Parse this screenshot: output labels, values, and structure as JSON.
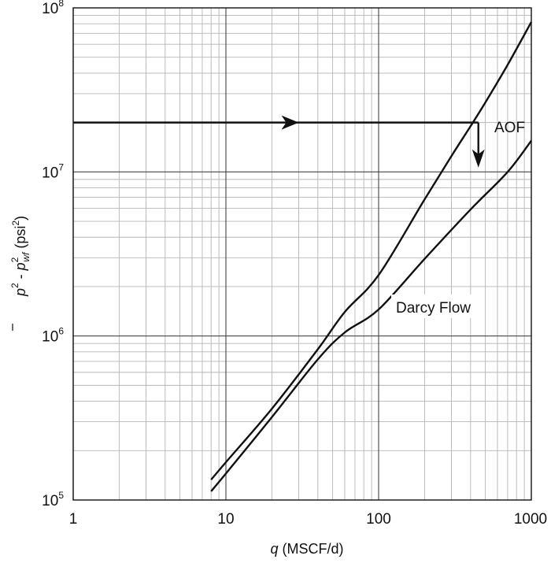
{
  "chart_data": {
    "type": "line",
    "title": "",
    "x_scale": "log",
    "y_scale": "log",
    "xlim": [
      1,
      1000
    ],
    "ylim": [
      100000,
      100000000
    ],
    "grid": true,
    "xlabel": {
      "var": "q",
      "rest": " (MSCF/d)"
    },
    "ylabel": {
      "p": "p",
      "sup1": "2",
      "sep": " - ",
      "p2": "p",
      "sup2": "2",
      "sub2": "wf",
      "unit": " (psi",
      "unit_sup": "2",
      "unit_close": ")"
    },
    "x_ticks": [
      {
        "value": 1,
        "label": "1"
      },
      {
        "value": 10,
        "label": "10"
      },
      {
        "value": 100,
        "label": "100"
      },
      {
        "value": 1000,
        "label": "1000"
      }
    ],
    "y_ticks": [
      {
        "value": 100000,
        "base": "10",
        "exp": "5"
      },
      {
        "value": 1000000,
        "base": "10",
        "exp": "6"
      },
      {
        "value": 10000000,
        "base": "10",
        "exp": "7"
      },
      {
        "value": 100000000,
        "base": "10",
        "exp": "8"
      }
    ],
    "series": [
      {
        "x": [
          8,
          10,
          20,
          40,
          60,
          100,
          200,
          300,
          400,
          500,
          700,
          1000
        ],
        "y": [
          133000,
          170000,
          360000,
          830000,
          1400000,
          2350000,
          6800000,
          12500000,
          19000000,
          26500000,
          45000000,
          82000000
        ]
      },
      {
        "name": "Darcy Flow",
        "x": [
          8,
          10,
          20,
          40,
          60,
          100,
          200,
          400,
          700,
          1000
        ],
        "y": [
          113000,
          145000,
          320000,
          720000,
          1050000,
          1450000,
          2950000,
          5900000,
          10000000,
          15500000
        ]
      }
    ],
    "annotations": {
      "aof_label": "AOF",
      "darcy_label": "Darcy Flow",
      "arrow_from_x": 1,
      "arrow_to_x": 450,
      "arrow_y": 20000000,
      "arrow_mid_x": 30,
      "down_arrow_x": 450,
      "down_arrow_y_end": 11000000
    }
  }
}
